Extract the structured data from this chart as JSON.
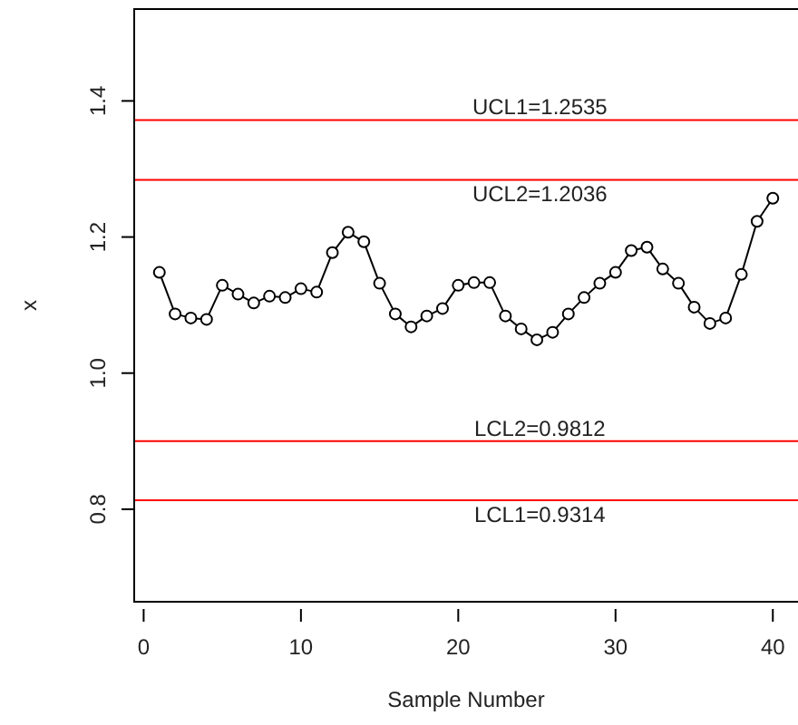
{
  "chart_data": {
    "type": "line",
    "xlabel": "Sample Number",
    "ylabel": "x",
    "x": [
      1,
      2,
      3,
      4,
      5,
      6,
      7,
      8,
      9,
      10,
      11,
      12,
      13,
      14,
      15,
      16,
      17,
      18,
      19,
      20,
      21,
      22,
      23,
      24,
      25,
      26,
      27,
      28,
      29,
      30,
      31,
      32,
      33,
      34,
      35,
      36,
      37,
      38,
      39,
      40
    ],
    "series": [
      {
        "color": "#000000",
        "values": [
          1.148,
          1.087,
          1.081,
          1.079,
          1.129,
          1.116,
          1.103,
          1.113,
          1.111,
          1.124,
          1.119,
          1.177,
          1.207,
          1.193,
          1.132,
          1.087,
          1.068,
          1.084,
          1.095,
          1.129,
          1.133,
          1.133,
          1.084,
          1.065,
          1.049,
          1.06,
          1.087,
          1.111,
          1.132,
          1.148,
          1.18,
          1.185,
          1.153,
          1.132,
          1.097,
          1.073,
          1.081,
          1.145,
          1.223,
          1.257
        ]
      }
    ],
    "xlim": [
      -0.6,
      41.6
    ],
    "xticks": [
      0,
      10,
      20,
      30,
      40
    ],
    "ylim": [
      0.664,
      1.535
    ],
    "yticks": [
      {
        "value": 0.8,
        "label": "0.8"
      },
      {
        "value": 1,
        "label": "1.0"
      },
      {
        "value": 1.2,
        "label": "1.2"
      },
      {
        "value": 1.4,
        "label": "1.4"
      }
    ],
    "ref_lines": [
      {
        "axis": "y",
        "value": 1.372,
        "color": "#ff0000"
      },
      {
        "axis": "y",
        "value": 1.284,
        "color": "#ff0000"
      },
      {
        "axis": "y",
        "value": 0.9,
        "color": "#ff0000"
      },
      {
        "axis": "y",
        "value": 0.813,
        "color": "#ff0000"
      }
    ],
    "annotations": [
      "UCL1=1.2535",
      "UCL2=1.2036",
      "LCL2=0.9812",
      "LCL1=0.9314"
    ],
    "marker": "circle",
    "line_style": "solid",
    "grid": false
  }
}
